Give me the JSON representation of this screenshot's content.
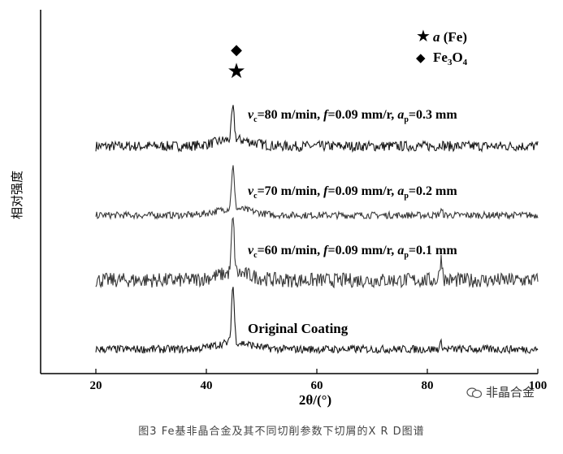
{
  "chart_data": {
    "type": "line",
    "title": "",
    "xlabel": "2θ/(°)",
    "ylabel": "相对强度",
    "xlim": [
      20,
      100
    ],
    "x_ticks": [
      "20",
      "40",
      "60",
      "80",
      "100"
    ],
    "grid": false,
    "legend": {
      "placement": "top-right",
      "entries": [
        {
          "marker": "star",
          "label": "α (Fe)"
        },
        {
          "marker": "diamond",
          "label": "Fe3O4"
        }
      ]
    },
    "peak_markers": [
      {
        "x": 45.6,
        "marker": "star"
      },
      {
        "x": 45.6,
        "marker": "diamond"
      }
    ],
    "series": [
      {
        "name": "vc=80 m/min, f=0.09 mm/r, ap=0.3 mm",
        "peaks": [
          {
            "x": 44.8,
            "height": 0.55
          },
          {
            "x": 82.5,
            "height": 0.05
          }
        ],
        "noise": 0.09,
        "color": "#1a1a1a"
      },
      {
        "name": "vc=70 m/min, f=0.09 mm/r, ap=0.2 mm",
        "peaks": [
          {
            "x": 44.8,
            "height": 0.75
          },
          {
            "x": 82.5,
            "height": 0.08
          }
        ],
        "noise": 0.06,
        "color": "#3a3a3a"
      },
      {
        "name": "vc=60 m/min, f=0.09 mm/r, ap=0.1 mm",
        "peaks": [
          {
            "x": 44.8,
            "height": 0.9
          },
          {
            "x": 82.5,
            "height": 0.35
          }
        ],
        "noise": 0.12,
        "color": "#3a3a3a"
      },
      {
        "name": "Original Coating",
        "peaks": [
          {
            "x": 44.8,
            "height": 1.0
          },
          {
            "x": 82.5,
            "height": 0.1
          }
        ],
        "noise": 0.07,
        "color": "#1a1a1a"
      }
    ]
  },
  "legend_alpha_label": "a",
  "legend_alpha_suffix": " (Fe)",
  "legend_fe": "Fe",
  "legend_fe_sub1": "3",
  "legend_o": "O",
  "legend_o_sub": "4",
  "labels": {
    "s80": {
      "v": "v",
      "v_sub": "c",
      "rest1": "=80 m/min, ",
      "f": "f",
      "rest2": "=0.09 mm/r, ",
      "a": "a",
      "a_sub": "p",
      "rest3": "=0.3 mm"
    },
    "s70": {
      "v": "v",
      "v_sub": "c",
      "rest1": "=70 m/min, ",
      "f": "f",
      "rest2": "=0.09 mm/r, ",
      "a": "a",
      "a_sub": "p",
      "rest3": "=0.2 mm"
    },
    "s60": {
      "v": "v",
      "v_sub": "c",
      "rest1": "=60 m/min, ",
      "f": "f",
      "rest2": "=0.09 mm/r, ",
      "a": "a",
      "a_sub": "p",
      "rest3": "=0.1 mm"
    },
    "orig": "Original Coating"
  },
  "watermark": "非晶合金",
  "caption": "图3 Fe基非晶合金及其不同切削参数下切屑的X R D图谱"
}
